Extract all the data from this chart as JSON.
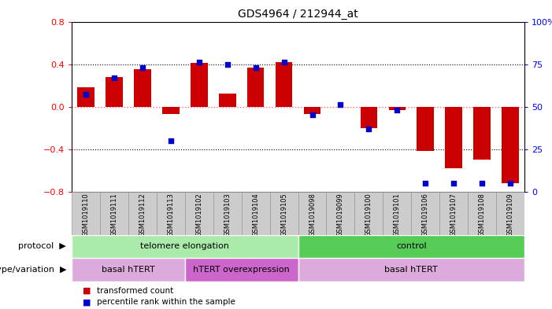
{
  "title": "GDS4964 / 212944_at",
  "samples": [
    "GSM1019110",
    "GSM1019111",
    "GSM1019112",
    "GSM1019113",
    "GSM1019102",
    "GSM1019103",
    "GSM1019104",
    "GSM1019105",
    "GSM1019098",
    "GSM1019099",
    "GSM1019100",
    "GSM1019101",
    "GSM1019106",
    "GSM1019107",
    "GSM1019108",
    "GSM1019109"
  ],
  "transformed_count": [
    0.18,
    0.28,
    0.35,
    -0.07,
    0.41,
    0.12,
    0.37,
    0.42,
    -0.07,
    0.0,
    -0.2,
    -0.03,
    -0.42,
    -0.58,
    -0.5,
    -0.72
  ],
  "percentile_rank": [
    57,
    67,
    73,
    30,
    76,
    75,
    73,
    76,
    45,
    51,
    37,
    48,
    5,
    5,
    5,
    5
  ],
  "ylim_left": [
    -0.8,
    0.8
  ],
  "ylim_right": [
    0,
    100
  ],
  "yticks_left": [
    -0.8,
    -0.4,
    0.0,
    0.4,
    0.8
  ],
  "yticks_right": [
    0,
    25,
    50,
    75,
    100
  ],
  "bar_color": "#cc0000",
  "dot_color": "#0000cc",
  "zero_line_color": "#ff6666",
  "dotted_line_color": "#333333",
  "protocol_groups": [
    {
      "label": "telomere elongation",
      "start": 0,
      "end": 7,
      "color": "#aaeaaa"
    },
    {
      "label": "control",
      "start": 8,
      "end": 15,
      "color": "#55cc55"
    }
  ],
  "genotype_groups": [
    {
      "label": "basal hTERT",
      "start": 0,
      "end": 3,
      "color": "#ddaadd"
    },
    {
      "label": "hTERT overexpression",
      "start": 4,
      "end": 7,
      "color": "#cc66cc"
    },
    {
      "label": "basal hTERT",
      "start": 8,
      "end": 15,
      "color": "#ddaadd"
    }
  ],
  "legend_items": [
    {
      "color": "#cc0000",
      "label": "transformed count"
    },
    {
      "color": "#0000cc",
      "label": "percentile rank within the sample"
    }
  ],
  "xlabel_protocol": "protocol",
  "xlabel_genotype": "genotype/variation",
  "sample_box_color": "#cccccc",
  "sample_box_edge": "#999999"
}
